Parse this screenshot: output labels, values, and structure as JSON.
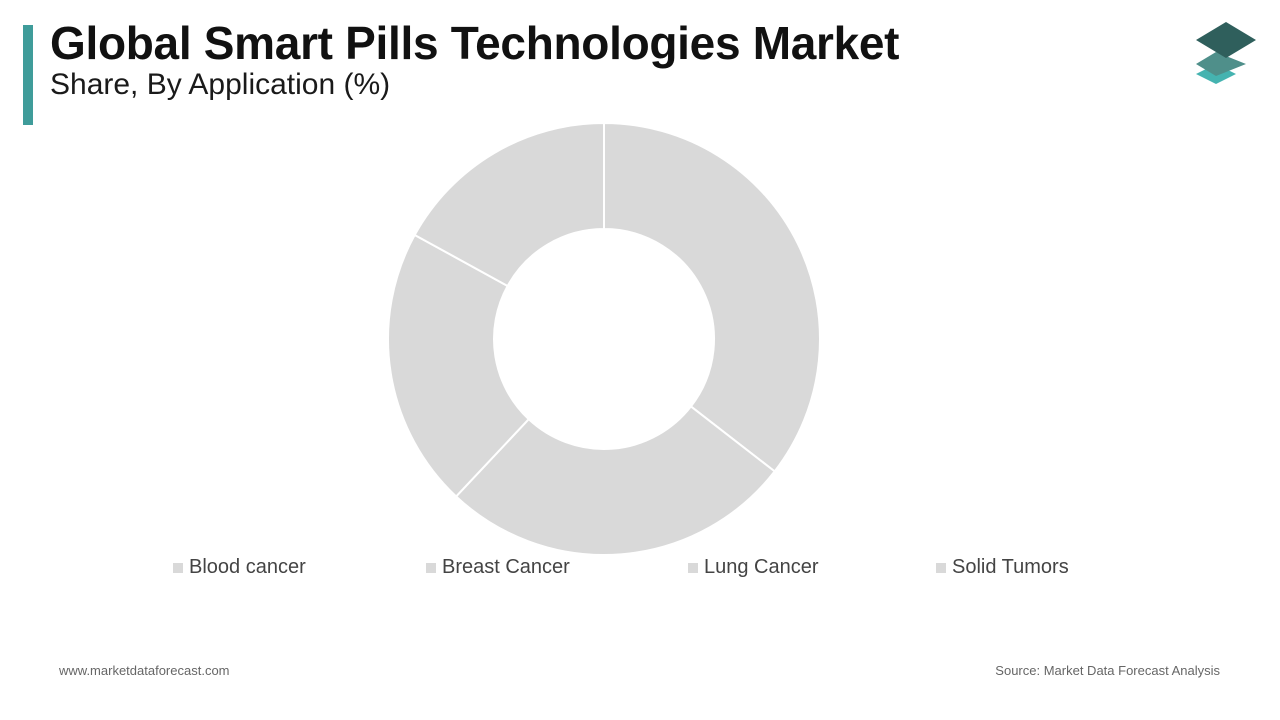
{
  "header": {
    "title": "Global Smart Pills Technologies Market",
    "subtitle": "Share, By Application  (%)"
  },
  "colors": {
    "accent": "#3f9c9a",
    "slice_fill": "#d9d9d9",
    "slice_stroke": "#ffffff",
    "logo_dark": "#2f5f5c",
    "logo_mid": "#4f8f8a",
    "logo_light": "#45b3b0"
  },
  "chart_data": {
    "type": "pie",
    "donut": true,
    "categories": [
      "Blood cancer",
      "Breast Cancer",
      "Lung Cancer",
      "Solid Tumors"
    ],
    "values": [
      35.5,
      26.5,
      21,
      17
    ],
    "legend_position": "bottom"
  },
  "footer": {
    "website": "www.marketdataforecast.com",
    "source": "Source: Market Data Forecast Analysis"
  },
  "logo": {
    "icon": "stacked-layers-icon"
  }
}
